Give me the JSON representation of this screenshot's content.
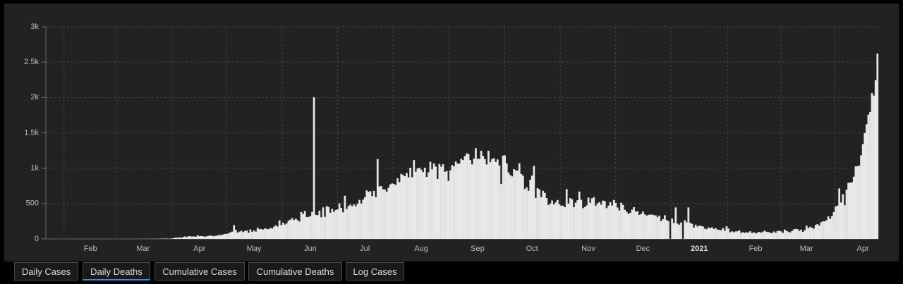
{
  "chart_data": {
    "type": "bar",
    "color": "#e8e8e8",
    "grid": true,
    "ylim": [
      0,
      3000
    ],
    "yticks": [
      0,
      500,
      {
        "value": 1000,
        "label": "1k"
      },
      {
        "value": 1500,
        "label": "1.5k"
      },
      {
        "value": 2000,
        "label": "2k"
      },
      {
        "value": 2500,
        "label": "2.5k"
      },
      {
        "value": 3000,
        "label": "3k"
      }
    ],
    "categories": [
      null,
      null,
      null,
      null,
      null,
      null,
      null,
      null,
      null,
      null,
      null,
      null,
      null,
      null,
      null,
      null,
      null,
      null,
      null,
      null,
      null,
      null,
      null,
      null,
      "Feb",
      null,
      null,
      null,
      null,
      null,
      null,
      null,
      null,
      null,
      null,
      null,
      null,
      null,
      null,
      null,
      null,
      null,
      null,
      null,
      null,
      null,
      null,
      null,
      null,
      null,
      null,
      null,
      null,
      "Mar",
      null,
      null,
      null,
      null,
      null,
      null,
      null,
      null,
      null,
      null,
      null,
      null,
      null,
      null,
      null,
      null,
      null,
      null,
      null,
      null,
      null,
      null,
      null,
      null,
      null,
      null,
      null,
      null,
      null,
      null,
      "Apr",
      null,
      null,
      null,
      null,
      null,
      null,
      null,
      null,
      null,
      null,
      null,
      null,
      null,
      null,
      null,
      null,
      null,
      null,
      null,
      null,
      null,
      null,
      null,
      null,
      null,
      null,
      null,
      null,
      null,
      "May",
      null,
      null,
      null,
      null,
      null,
      null,
      null,
      null,
      null,
      null,
      null,
      null,
      null,
      null,
      null,
      null,
      null,
      null,
      null,
      null,
      null,
      null,
      null,
      null,
      null,
      null,
      null,
      null,
      null,
      null,
      "Jun",
      null,
      null,
      null,
      null,
      null,
      null,
      null,
      null,
      null,
      null,
      null,
      null,
      null,
      null,
      null,
      null,
      null,
      null,
      null,
      null,
      null,
      null,
      null,
      null,
      null,
      null,
      null,
      null,
      null,
      "Jul",
      null,
      null,
      null,
      null,
      null,
      null,
      null,
      null,
      null,
      null,
      null,
      null,
      null,
      null,
      null,
      null,
      null,
      null,
      null,
      null,
      null,
      null,
      null,
      null,
      null,
      null,
      null,
      null,
      null,
      null,
      "Aug",
      null,
      null,
      null,
      null,
      null,
      null,
      null,
      null,
      null,
      null,
      null,
      null,
      null,
      null,
      null,
      null,
      null,
      null,
      null,
      null,
      null,
      null,
      null,
      null,
      null,
      null,
      null,
      null,
      null,
      null,
      "Sep",
      null,
      null,
      null,
      null,
      null,
      null,
      null,
      null,
      null,
      null,
      null,
      null,
      null,
      null,
      null,
      null,
      null,
      null,
      null,
      null,
      null,
      null,
      null,
      null,
      null,
      null,
      null,
      null,
      null,
      "Oct",
      null,
      null,
      null,
      null,
      null,
      null,
      null,
      null,
      null,
      null,
      null,
      null,
      null,
      null,
      null,
      null,
      null,
      null,
      null,
      null,
      null,
      null,
      null,
      null,
      null,
      null,
      null,
      null,
      null,
      null,
      "Nov",
      null,
      null,
      null,
      null,
      null,
      null,
      null,
      null,
      null,
      null,
      null,
      null,
      null,
      null,
      null,
      null,
      null,
      null,
      null,
      null,
      null,
      null,
      null,
      null,
      null,
      null,
      null,
      null,
      null,
      "Dec",
      null,
      null,
      null,
      null,
      null,
      null,
      null,
      null,
      null,
      null,
      null,
      null,
      null,
      null,
      null,
      null,
      null,
      null,
      null,
      null,
      null,
      null,
      null,
      null,
      null,
      null,
      null,
      null,
      null,
      null,
      "2021",
      null,
      null,
      null,
      null,
      null,
      null,
      null,
      null,
      null,
      null,
      null,
      null,
      null,
      null,
      null,
      null,
      null,
      null,
      null,
      null,
      null,
      null,
      null,
      null,
      null,
      null,
      null,
      null,
      null,
      null,
      "Feb",
      null,
      null,
      null,
      null,
      null,
      null,
      null,
      null,
      null,
      null,
      null,
      null,
      null,
      null,
      null,
      null,
      null,
      null,
      null,
      null,
      null,
      null,
      null,
      null,
      null,
      null,
      null,
      "Mar",
      null,
      null,
      null,
      null,
      null,
      null,
      null,
      null,
      null,
      null,
      null,
      null,
      null,
      null,
      null,
      null,
      null,
      null,
      null,
      null,
      null,
      null,
      null,
      null,
      null,
      null,
      null,
      null,
      null,
      null,
      "Apr",
      null,
      null,
      null,
      null,
      null,
      null,
      null,
      null
    ],
    "values": [
      0,
      0,
      0,
      0,
      0,
      0,
      0,
      0,
      0,
      0,
      0,
      0,
      0,
      0,
      0,
      0,
      0,
      0,
      0,
      0,
      0,
      0,
      0,
      0,
      0,
      0,
      0,
      0,
      0,
      0,
      0,
      0,
      0,
      0,
      0,
      0,
      0,
      0,
      0,
      0,
      0,
      0,
      0,
      0,
      0,
      0,
      0,
      0,
      0,
      0,
      1,
      0,
      0,
      0,
      1,
      1,
      0,
      1,
      1,
      2,
      1,
      3,
      2,
      3,
      4,
      4,
      5,
      2,
      3,
      7,
      12,
      20,
      14,
      22,
      15,
      27,
      35,
      25,
      40,
      36,
      34,
      35,
      31,
      51,
      38,
      41,
      37,
      31,
      37,
      43,
      48,
      41,
      38,
      44,
      49,
      57,
      54,
      62,
      71,
      73,
      77,
      93,
      103,
      195,
      128,
      89,
      103,
      115,
      97,
      111,
      120,
      87,
      134,
      100,
      120,
      103,
      158,
      137,
      140,
      132,
      148,
      142,
      137,
      155,
      146,
      173,
      193,
      175,
      263,
      194,
      230,
      203,
      221,
      258,
      272,
      294,
      266,
      286,
      266,
      246,
      381,
      352,
      394,
      308,
      311,
      323,
      381,
      2003,
      341,
      336,
      399,
      306,
      445,
      312,
      463,
      452,
      370,
      425,
      382,
      410,
      418,
      504,
      438,
      376,
      611,
      423,
      467,
      485,
      463,
      488,
      463,
      497,
      552,
      500,
      553,
      589,
      686,
      665,
      675,
      605,
      680,
      591,
      1129,
      742,
      747,
      702,
      699,
      667,
      722,
      772,
      784,
      776,
      764,
      857,
      803,
      920,
      904,
      886,
      933,
      871,
      1007,
      871,
      1115,
      950,
      996,
      1007,
      980,
      944,
      1007,
      876,
      941,
      1091,
      983,
      1066,
      1023,
      848,
      1059,
      1021,
      1057,
      948,
      960,
      819,
      971,
      1045,
      1025,
      1096,
      1066,
      1065,
      1133,
      1115,
      1172,
      1209,
      1201,
      1114,
      1054,
      1136,
      1283,
      1132,
      1133,
      1247,
      1174,
      1130,
      1053,
      1247,
      1085,
      1129,
      1141,
      1089,
      1124,
      1039,
      776,
      1179,
      1181,
      1069,
      940,
      903,
      884,
      986,
      971,
      964,
      1069,
      918,
      895,
      706,
      730,
      680,
      837,
      895,
      1033,
      579,
      717,
      701,
      590,
      680,
      650,
      578,
      480,
      500,
      543,
      488,
      517,
      551,
      490,
      470,
      470,
      449,
      704,
      500,
      577,
      560,
      448,
      512,
      547,
      670,
      554,
      435,
      449,
      474,
      584,
      510,
      574,
      590,
      470,
      501,
      520,
      485,
      542,
      534,
      435,
      471,
      520,
      473,
      551,
      510,
      444,
      402,
      512,
      482,
      411,
      384,
      355,
      368,
      413,
      450,
      387,
      391,
      340,
      354,
      387,
      347,
      329,
      341,
      343,
      345,
      336,
      333,
      306,
      328,
      251,
      279,
      334,
      268,
      251,
      0,
      286,
      224,
      445,
      216,
      201,
      232,
      0,
      264,
      234,
      445,
      228,
      212,
      161,
      201,
      174,
      189,
      181,
      176,
      145,
      137,
      162,
      151,
      163,
      141,
      152,
      131,
      127,
      123,
      153,
      117,
      178,
      148,
      94,
      107,
      94,
      106,
      107,
      121,
      86,
      95,
      86,
      94,
      89,
      108,
      82,
      94,
      78,
      88,
      100,
      89,
      102,
      117,
      101,
      97,
      87,
      81,
      104,
      87,
      113,
      112,
      106,
      86,
      132,
      113,
      103,
      93,
      111,
      135,
      142,
      138,
      114,
      131,
      99,
      123,
      187,
      151,
      172,
      158,
      145,
      199,
      209,
      189,
      236,
      249,
      249,
      265,
      319,
      283,
      322,
      380,
      459,
      470,
      714,
      514,
      631,
      476,
      696,
      794,
      796,
      801,
      880,
      1026,
      1027,
      1037,
      1183,
      1341,
      1496,
      1621,
      1757,
      1795,
      2062,
      2027,
      2245,
      2621
    ]
  },
  "tabs": {
    "items": [
      "Daily Cases",
      "Daily Deaths",
      "Cumulative Cases",
      "Cumulative Deaths",
      "Log Cases"
    ],
    "active": 1
  }
}
